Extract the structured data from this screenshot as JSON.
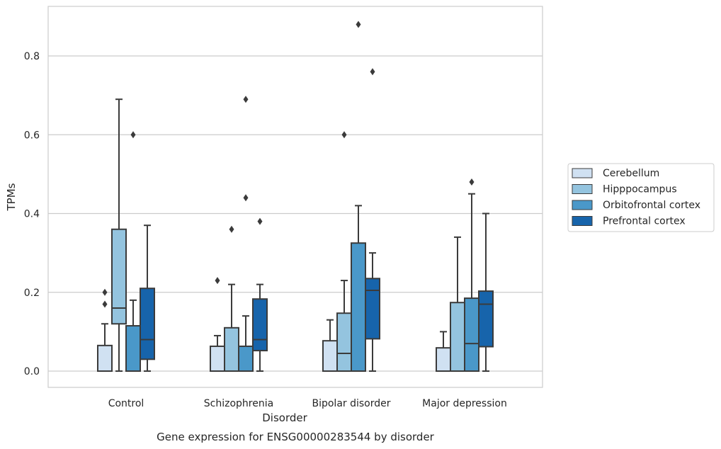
{
  "chart_data": {
    "type": "box",
    "title": "",
    "caption": "Gene expression for ENSG00000283544 by disorder",
    "xlabel": "Disorder",
    "ylabel": "TPMs",
    "ylim": [
      -0.042,
      0.928
    ],
    "yticks": [
      0.0,
      0.2,
      0.4,
      0.6,
      0.8
    ],
    "ytick_labels": [
      "0.0",
      "0.2",
      "0.4",
      "0.6",
      "0.8"
    ],
    "grid": "horizontal",
    "legend_position": "right",
    "categories": [
      "Control",
      "Schizophrenia",
      "Bipolar disorder",
      "Major depression"
    ],
    "series": [
      {
        "name": "Cerebellum",
        "color": "#d0e1f2",
        "boxes": [
          {
            "whisker_low": 0.0,
            "q1": 0.0,
            "median": 0.0,
            "q3": 0.065,
            "whisker_high": 0.12,
            "outliers": [
              0.17,
              0.2
            ]
          },
          {
            "whisker_low": 0.0,
            "q1": 0.0,
            "median": 0.0,
            "q3": 0.063,
            "whisker_high": 0.09,
            "outliers": [
              0.23
            ]
          },
          {
            "whisker_low": 0.0,
            "q1": 0.0,
            "median": 0.0,
            "q3": 0.077,
            "whisker_high": 0.13,
            "outliers": []
          },
          {
            "whisker_low": 0.0,
            "q1": 0.0,
            "median": 0.0,
            "q3": 0.059,
            "whisker_high": 0.1,
            "outliers": []
          }
        ]
      },
      {
        "name": "Hipppocampus",
        "color": "#94c4df",
        "boxes": [
          {
            "whisker_low": 0.0,
            "q1": 0.12,
            "median": 0.16,
            "q3": 0.36,
            "whisker_high": 0.69,
            "outliers": []
          },
          {
            "whisker_low": 0.0,
            "q1": 0.0,
            "median": 0.0,
            "q3": 0.11,
            "whisker_high": 0.22,
            "outliers": [
              0.36
            ]
          },
          {
            "whisker_low": 0.0,
            "q1": 0.0,
            "median": 0.045,
            "q3": 0.147,
            "whisker_high": 0.23,
            "outliers": [
              0.6
            ]
          },
          {
            "whisker_low": 0.0,
            "q1": 0.0,
            "median": 0.0,
            "q3": 0.174,
            "whisker_high": 0.34,
            "outliers": []
          }
        ]
      },
      {
        "name": "Orbitofrontal cortex",
        "color": "#4a98c9",
        "boxes": [
          {
            "whisker_low": 0.0,
            "q1": 0.0,
            "median": 0.0,
            "q3": 0.115,
            "whisker_high": 0.18,
            "outliers": [
              0.6
            ]
          },
          {
            "whisker_low": 0.0,
            "q1": 0.0,
            "median": 0.0,
            "q3": 0.063,
            "whisker_high": 0.14,
            "outliers": [
              0.44,
              0.69
            ]
          },
          {
            "whisker_low": 0.0,
            "q1": 0.0,
            "median": 0.0,
            "q3": 0.325,
            "whisker_high": 0.42,
            "outliers": [
              0.88
            ]
          },
          {
            "whisker_low": 0.0,
            "q1": 0.0,
            "median": 0.07,
            "q3": 0.185,
            "whisker_high": 0.45,
            "outliers": [
              0.48
            ]
          }
        ]
      },
      {
        "name": "Prefrontal cortex",
        "color": "#1764ab",
        "boxes": [
          {
            "whisker_low": 0.0,
            "q1": 0.03,
            "median": 0.08,
            "q3": 0.21,
            "whisker_high": 0.37,
            "outliers": []
          },
          {
            "whisker_low": 0.0,
            "q1": 0.052,
            "median": 0.08,
            "q3": 0.183,
            "whisker_high": 0.22,
            "outliers": [
              0.38
            ]
          },
          {
            "whisker_low": 0.0,
            "q1": 0.082,
            "median": 0.205,
            "q3": 0.235,
            "whisker_high": 0.3,
            "outliers": [
              0.76
            ]
          },
          {
            "whisker_low": 0.0,
            "q1": 0.062,
            "median": 0.17,
            "q3": 0.203,
            "whisker_high": 0.4,
            "outliers": []
          }
        ]
      }
    ]
  }
}
